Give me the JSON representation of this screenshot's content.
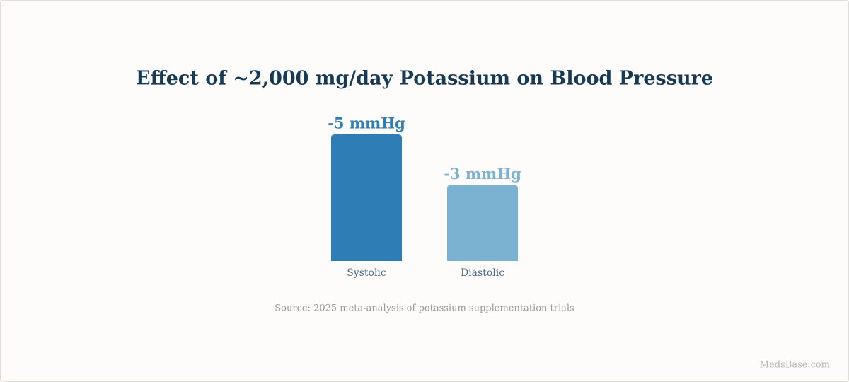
{
  "chart_data": {
    "type": "bar",
    "title": "Effect of ~2,000 mg/day Potassium on Blood Pressure",
    "categories": [
      "Systolic",
      "Diastolic"
    ],
    "values": [
      -5,
      -3
    ],
    "value_labels": [
      "-5 mmHg",
      "-3 mmHg"
    ],
    "colors": [
      "#2e7db4",
      "#7bb1d1"
    ],
    "source": "Source: 2025 meta-analysis of potassium supplementation trials",
    "watermark": "MedsBase.com"
  }
}
